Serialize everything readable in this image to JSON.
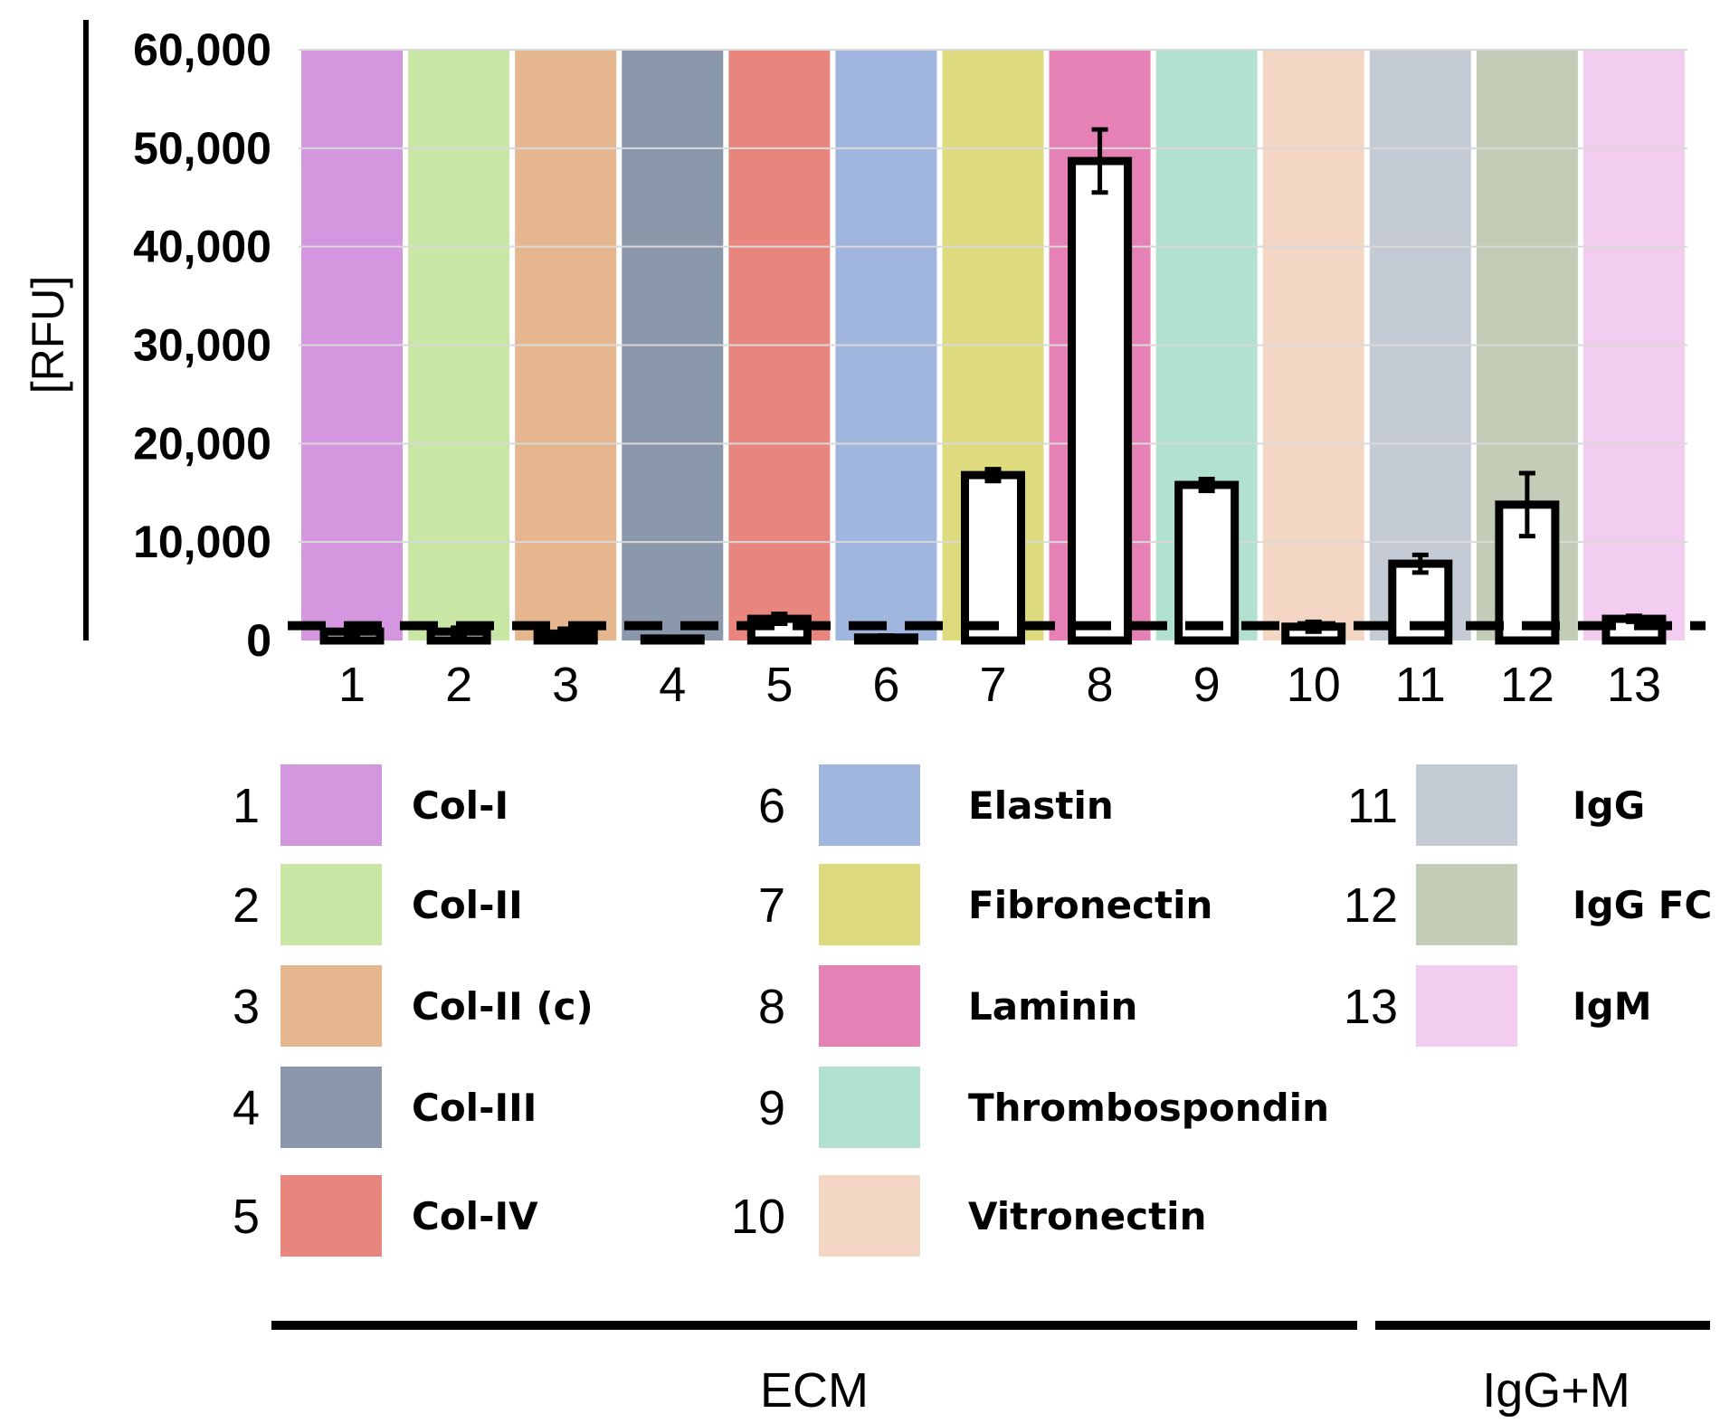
{
  "chart_data": {
    "type": "bar",
    "title": "",
    "xlabel": "",
    "ylabel": "[RFU]",
    "ylim": [
      0,
      60000
    ],
    "yticks": [
      {
        "value": 0,
        "label": "0"
      },
      {
        "value": 10000,
        "label": "10,000"
      },
      {
        "value": 20000,
        "label": "20,000"
      },
      {
        "value": 30000,
        "label": "30,000"
      },
      {
        "value": 40000,
        "label": "40,000"
      },
      {
        "value": 50000,
        "label": "50,000"
      },
      {
        "value": 60000,
        "label": "60,000"
      }
    ],
    "grid": true,
    "threshold": 1500,
    "categories": [
      "1",
      "2",
      "3",
      "4",
      "5",
      "6",
      "7",
      "8",
      "9",
      "10",
      "11",
      "12",
      "13"
    ],
    "values": [
      900,
      900,
      700,
      200,
      2200,
      300,
      16800,
      48700,
      15800,
      1400,
      7800,
      13800,
      2200
    ],
    "errors": [
      500,
      400,
      500,
      100,
      500,
      200,
      600,
      3200,
      600,
      500,
      900,
      3200,
      300
    ],
    "background_colors": [
      "#d596e0",
      "#c8e7a5",
      "#e6b68e",
      "#8b97aa",
      "#e8857d",
      "#a0b6df",
      "#dedb7e",
      "#e681b6",
      "#b2e1cf",
      "#f3d6c4",
      "#c5cbd5",
      "#c2ccb6",
      "#f3cdef"
    ],
    "legend": {
      "items": [
        {
          "num": "1",
          "name": "Col-I",
          "color": "#d596e0"
        },
        {
          "num": "2",
          "name": "Col-II",
          "color": "#c8e7a5"
        },
        {
          "num": "3",
          "name": "Col-II (c)",
          "color": "#e6b68e"
        },
        {
          "num": "4",
          "name": "Col-III",
          "color": "#8b97aa"
        },
        {
          "num": "5",
          "name": "Col-IV",
          "color": "#e8857d"
        },
        {
          "num": "6",
          "name": "Elastin",
          "color": "#a0b6df"
        },
        {
          "num": "7",
          "name": "Fibronectin",
          "color": "#dedb7e"
        },
        {
          "num": "8",
          "name": "Laminin",
          "color": "#e681b6"
        },
        {
          "num": "9",
          "name": "Thrombospondin",
          "color": "#b2e1cf"
        },
        {
          "num": "10",
          "name": "Vitronectin",
          "color": "#f3d6c4"
        },
        {
          "num": "11",
          "name": "IgG",
          "color": "#c5cbd5"
        },
        {
          "num": "12",
          "name": "IgG FC",
          "color": "#c2ccb6"
        },
        {
          "num": "13",
          "name": "IgM",
          "color": "#f3cdef"
        }
      ]
    },
    "groups": [
      {
        "label": "ECM",
        "from": "1",
        "to": "10"
      },
      {
        "label": "IgG+M",
        "from": "11",
        "to": "13"
      }
    ]
  }
}
